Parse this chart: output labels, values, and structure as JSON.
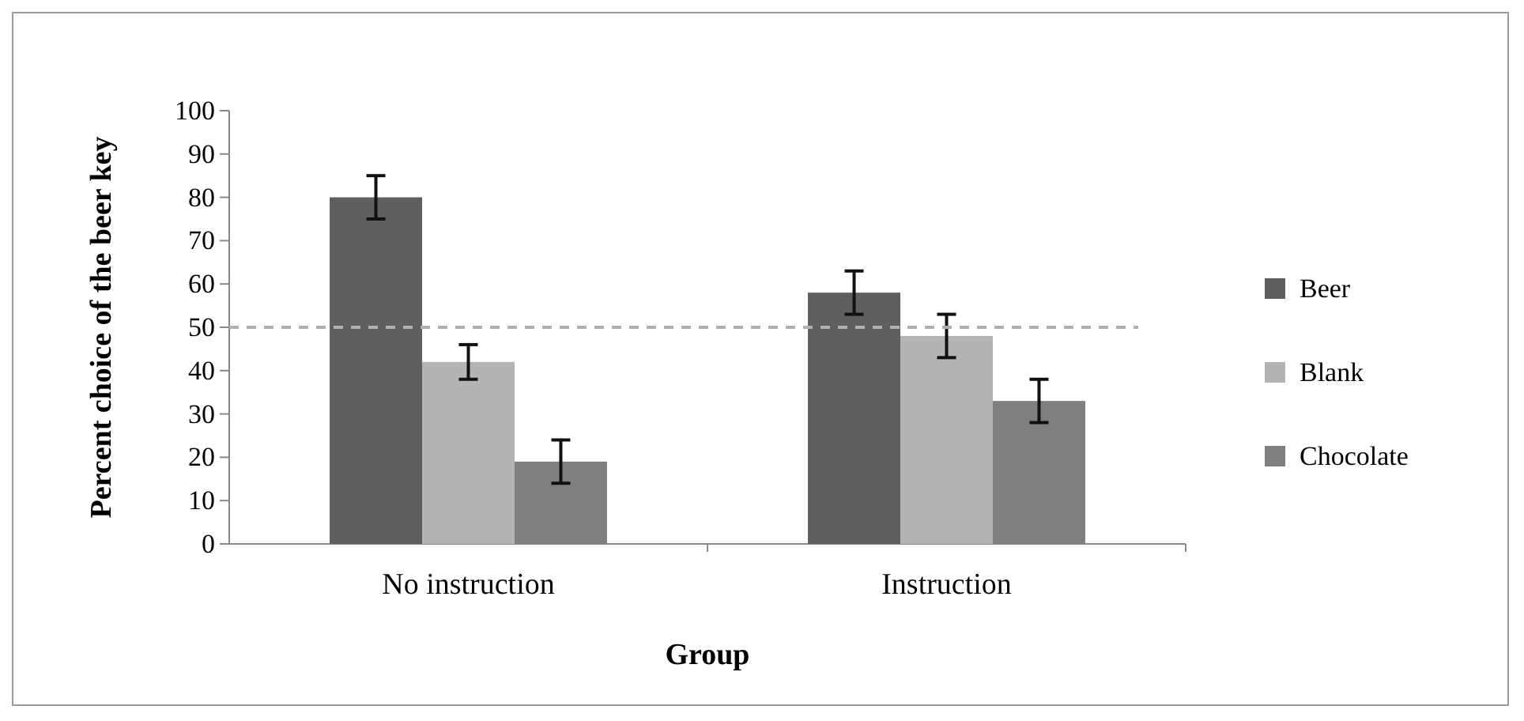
{
  "chart_data": {
    "type": "bar",
    "xlabel": "Group",
    "ylabel": "Percent choice of the beer key",
    "categories": [
      "No instruction",
      "Instruction"
    ],
    "series": [
      {
        "name": "Beer",
        "color": "#5f5f5f",
        "values": [
          80,
          58
        ],
        "errors": [
          5,
          5
        ]
      },
      {
        "name": "Blank",
        "color": "#b4b4b4",
        "values": [
          42,
          48
        ],
        "errors": [
          4,
          5
        ]
      },
      {
        "name": "Chocolate",
        "color": "#7f7f7f",
        "values": [
          19,
          33
        ],
        "errors": [
          5,
          5
        ]
      }
    ],
    "ylim": [
      0,
      100
    ],
    "yticks": [
      0,
      10,
      20,
      30,
      40,
      50,
      60,
      70,
      80,
      90,
      100
    ],
    "grid": false,
    "legend": "right",
    "ref_lines": [
      {
        "axis": "y",
        "value": 50,
        "color": "#b0b0b0",
        "line_style": "dashed"
      }
    ]
  }
}
